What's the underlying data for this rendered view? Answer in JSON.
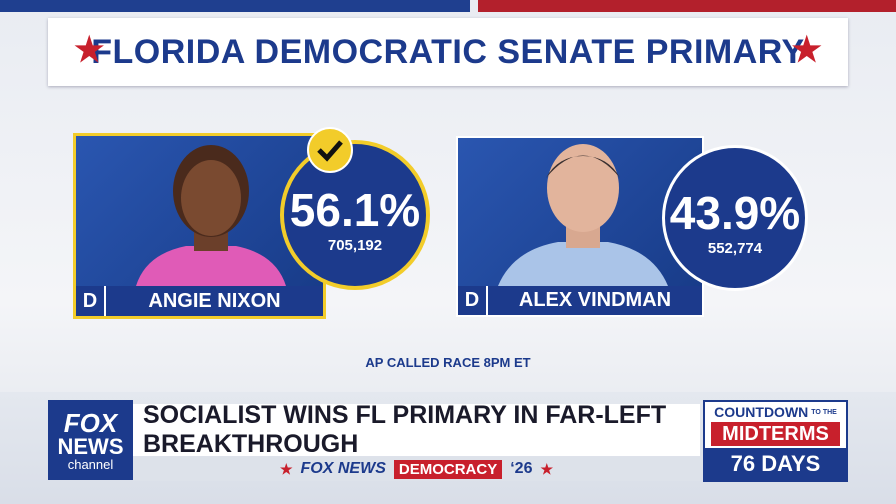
{
  "header": {
    "title": "FLORIDA DEMOCRATIC SENATE PRIMARY"
  },
  "candidates": [
    {
      "party": "D",
      "name": "ANGIE NIXON",
      "percent": "56.1%",
      "votes": "705,192",
      "winner": true
    },
    {
      "party": "D",
      "name": "ALEX VINDMAN",
      "percent": "43.9%",
      "votes": "552,774",
      "winner": false
    }
  ],
  "called": "AP CALLED RACE 8PM ET",
  "lower_third": {
    "logo": [
      "FOX",
      "NEWS",
      "channel"
    ],
    "headline": "SOCIALIST WINS FL PRIMARY IN FAR-LEFT BREAKTHROUGH",
    "strip": [
      "FOX NEWS",
      "DEMOCRACY",
      "‘26"
    ],
    "countdown": {
      "top": "COUNTDOWN",
      "small": "TO THE",
      "middle": "MIDTERMS",
      "bottom": "76 DAYS"
    }
  }
}
